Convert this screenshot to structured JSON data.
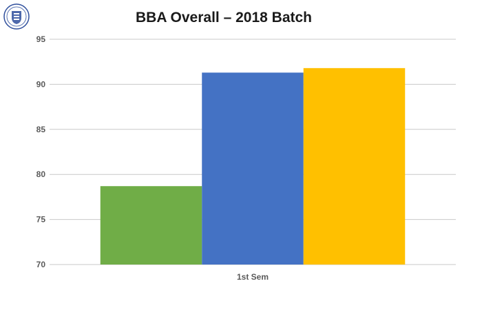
{
  "colors": {
    "series": [
      "#70ad47",
      "#4472c4",
      "#ffc000"
    ],
    "grid": "#c8c8c8",
    "logo": "#2e4e9c"
  },
  "logo": {
    "icon": "institution-crest-icon"
  },
  "chart_data": {
    "type": "bar",
    "title": "BBA Overall – 2018 Batch",
    "xlabel": "",
    "ylabel": "",
    "categories": [
      "1st Sem"
    ],
    "series": [
      {
        "values": [
          78.7
        ]
      },
      {
        "values": [
          91.3
        ]
      },
      {
        "values": [
          91.8
        ]
      }
    ],
    "ylim": [
      70,
      95
    ],
    "yticks": [
      70,
      75,
      80,
      85,
      90,
      95
    ],
    "grid": true,
    "legend": "none"
  }
}
